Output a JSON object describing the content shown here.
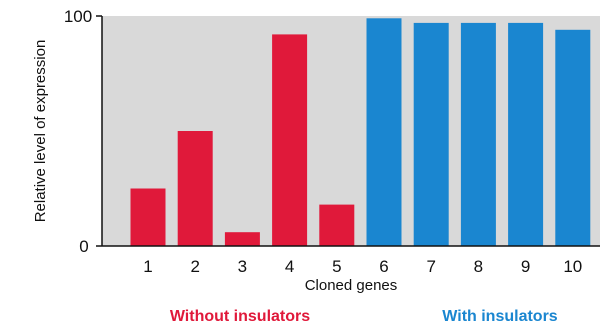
{
  "chart_data": {
    "type": "bar",
    "xlabel": "Cloned genes",
    "ylabel": "Relative level of expression",
    "ylim": [
      0,
      100
    ],
    "yticks": [
      "0",
      "100"
    ],
    "categories": [
      "1",
      "2",
      "3",
      "4",
      "5",
      "6",
      "7",
      "8",
      "9",
      "10"
    ],
    "values": [
      25,
      50,
      6,
      92,
      18,
      99,
      97,
      97,
      97,
      94
    ],
    "groups": [
      {
        "label": "Without insulators",
        "color": "#e0193a",
        "categories": [
          "1",
          "2",
          "3",
          "4",
          "5"
        ]
      },
      {
        "label": "With insulators",
        "color": "#1a86d0",
        "categories": [
          "6",
          "7",
          "8",
          "9",
          "10"
        ]
      }
    ],
    "plot_background": "#d9d9d9",
    "grid": false
  }
}
